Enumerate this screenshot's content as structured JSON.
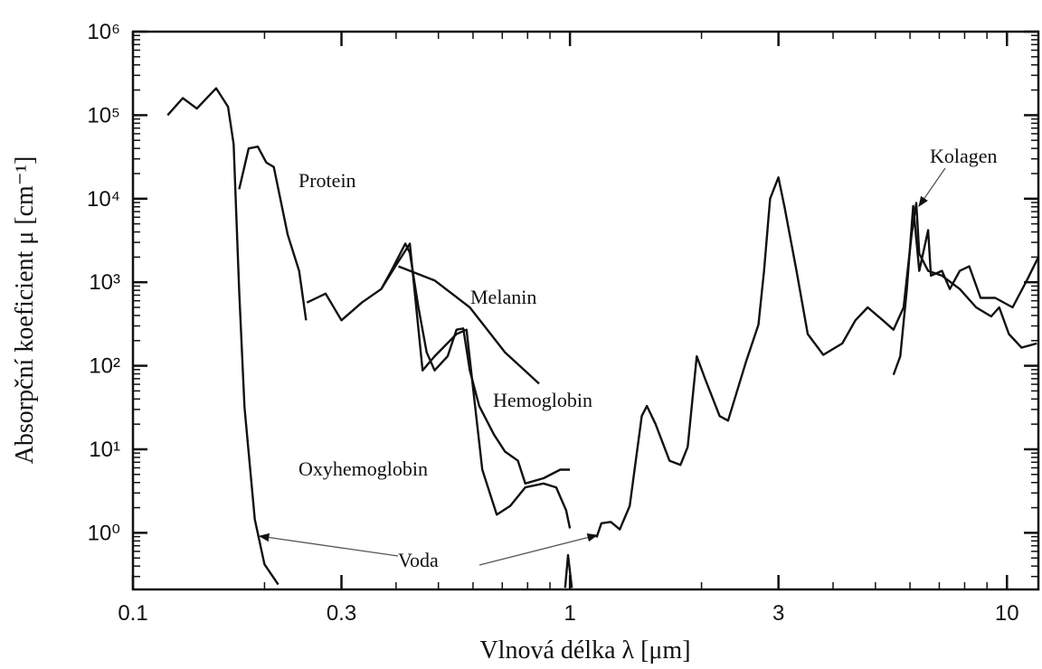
{
  "chart_data": {
    "type": "line",
    "xlabel": "Vlnová délka λ [μm]",
    "ylabel": "Absorpční koeficient μ [cm⁻¹]",
    "xscale": "log",
    "yscale": "log",
    "xlim": [
      0.1,
      11.8
    ],
    "ylim": [
      0.21,
      1000000
    ],
    "xticks": [
      0.1,
      0.3,
      1,
      3,
      10
    ],
    "yticks": [
      {
        "value": 1,
        "label": "10⁰"
      },
      {
        "value": 10,
        "label": "10¹"
      },
      {
        "value": 100,
        "label": "10²"
      },
      {
        "value": 1000,
        "label": "10³"
      },
      {
        "value": 10000,
        "label": "10⁴"
      },
      {
        "value": 100000,
        "label": "10⁵"
      },
      {
        "value": 1000000,
        "label": "10⁶"
      }
    ],
    "series": [
      {
        "name": "Voda",
        "color": "#111111",
        "x": [
          0.12,
          0.13,
          0.14,
          0.155,
          0.165,
          0.17,
          0.175,
          0.18,
          0.19,
          0.2,
          0.215,
          null,
          0.975,
          0.99,
          1.01,
          null,
          1.15,
          1.18,
          1.24,
          1.3,
          1.37,
          1.46,
          1.5,
          1.57,
          1.69,
          1.79,
          1.86,
          1.95,
          2.04,
          2.2,
          2.3,
          2.53,
          2.7,
          2.78,
          2.87,
          3.0,
          3.1,
          3.3,
          3.5,
          3.8,
          4.2,
          4.5,
          4.8,
          5.2,
          5.5,
          5.8,
          6.05,
          6.2,
          6.3,
          6.6,
          7.1,
          7.8,
          8.5,
          9.2,
          9.6,
          10.1,
          10.8,
          11.7
        ],
        "values": [
          100000,
          160000,
          120000,
          210000,
          126000,
          45000,
          800,
          32,
          1.45,
          0.42,
          0.24,
          null,
          0.22,
          0.54,
          0.22,
          null,
          0.88,
          1.3,
          1.35,
          1.1,
          2.1,
          25,
          33,
          20,
          7.3,
          6.5,
          10.7,
          130,
          69,
          25,
          22,
          113,
          310,
          1370,
          10000,
          18000,
          7800,
          1370,
          240,
          135,
          185,
          350,
          500,
          350,
          270,
          500,
          3700,
          8900,
          2200,
          1370,
          1200,
          830,
          500,
          390,
          500,
          240,
          165,
          185
        ]
      },
      {
        "name": "Protein",
        "color": "#111111",
        "x": [
          0.175,
          0.184,
          0.193,
          0.202,
          0.21,
          0.226,
          0.24,
          0.249
        ],
        "values": [
          13000,
          40000,
          42000,
          27000,
          24000,
          3700,
          1370,
          350
        ]
      },
      {
        "name": "Melanin",
        "color": "#111111",
        "x": [
          0.405,
          0.49,
          0.59,
          0.71,
          0.85
        ],
        "values": [
          1550,
          1050,
          500,
          145,
          61
        ]
      },
      {
        "name": "Hemoglobin",
        "color": "#111111",
        "x": [
          0.25,
          0.276,
          0.3,
          0.334,
          0.37,
          0.39,
          0.42,
          0.43,
          0.45,
          0.47,
          0.49,
          0.525,
          0.55,
          0.57,
          0.59,
          0.62,
          0.67,
          0.71,
          0.76,
          0.79,
          0.87,
          0.95,
          1.0
        ],
        "values": [
          570,
          730,
          350,
          570,
          830,
          1370,
          2900,
          2250,
          500,
          145,
          88,
          130,
          270,
          280,
          88,
          33,
          15,
          9.4,
          7.3,
          3.9,
          4.5,
          5.7,
          5.7
        ]
      },
      {
        "name": "Oxyhemoglobin",
        "color": "#111111",
        "x": [
          0.37,
          0.4,
          0.43,
          0.46,
          0.49,
          0.55,
          0.58,
          0.6,
          0.63,
          0.68,
          0.73,
          0.79,
          0.87,
          0.93,
          0.98,
          1.0
        ],
        "values": [
          830,
          1600,
          2900,
          88,
          130,
          240,
          270,
          54,
          5.7,
          1.65,
          2.1,
          3.5,
          3.9,
          3.5,
          1.86,
          1.13
        ]
      },
      {
        "name": "Kolagen",
        "color": "#111111",
        "x": [
          5.5,
          5.7,
          5.9,
          6.1,
          6.3,
          6.6,
          6.7,
          7.1,
          7.4,
          7.8,
          8.2,
          8.7,
          9.4,
          10.3,
          11.1,
          11.8
        ],
        "values": [
          78,
          130,
          830,
          8200,
          1370,
          4200,
          1200,
          1370,
          830,
          1370,
          1550,
          650,
          650,
          500,
          1050,
          2000
        ]
      }
    ]
  }
}
